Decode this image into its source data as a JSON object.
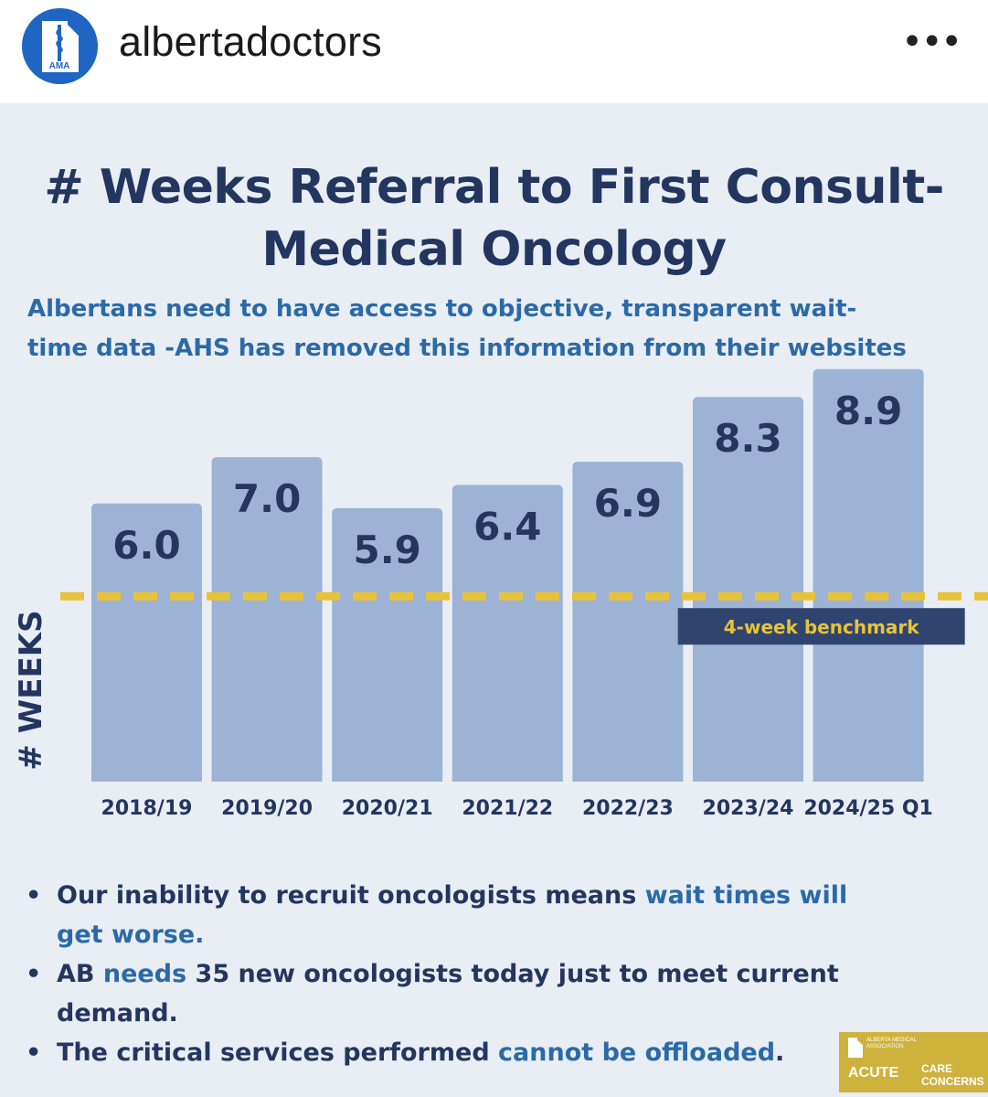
{
  "account": {
    "username": "albertadoctors",
    "avatar_text": "AMA"
  },
  "card": {
    "title_line1": "# Weeks Referral to First Consult-",
    "title_line2": "Medical Oncology",
    "subtitle_line1": "Albertans need to have access to objective, transparent wait-",
    "subtitle_line2": "time data -AHS has removed this information from their websites"
  },
  "chart_data": {
    "type": "bar",
    "title": "# Weeks Referral to First Consult- Medical Oncology",
    "ylabel": "# WEEKS",
    "xlabel": "",
    "categories": [
      "2018/19",
      "2019/20",
      "2020/21",
      "2021/22",
      "2022/23",
      "2023/24",
      "2024/25 Q1"
    ],
    "values": [
      6.0,
      7.0,
      5.9,
      6.4,
      6.9,
      8.3,
      8.9
    ],
    "value_labels": [
      "6.0",
      "7.0",
      "5.9",
      "6.4",
      "6.9",
      "8.3",
      "8.9"
    ],
    "ylim": [
      0,
      10
    ],
    "benchmark": {
      "value": 4,
      "label": "4-week benchmark"
    },
    "colors": {
      "bar": "#9db3d5",
      "value_text": "#22365f",
      "benchmark": "#e8c33a",
      "benchmark_box": "#2f4570",
      "benchmark_text": "#e8c33a",
      "axis_text": "#22365f"
    },
    "grid": false,
    "legend": "none"
  },
  "bullets": [
    {
      "parts": [
        {
          "text": "Our inability to recruit oncologists means ",
          "hl": false
        },
        {
          "text": "wait times will get worse.",
          "hl": true
        }
      ]
    },
    {
      "parts": [
        {
          "text": "AB ",
          "hl": false
        },
        {
          "text": "needs",
          "hl": true
        },
        {
          "text": " 35 new oncologists today just to meet current demand.",
          "hl": false
        }
      ]
    },
    {
      "parts": [
        {
          "text": "The critical services performed ",
          "hl": false
        },
        {
          "text": "cannot be offloaded",
          "hl": true
        },
        {
          "text": ".",
          "hl": false
        }
      ]
    }
  ],
  "badge": {
    "assoc": "ALBERTA MEDICAL ASSOCIATION",
    "acute": "ACUTE",
    "care": "CARE",
    "concerns": "CONCERNS"
  },
  "icons": {
    "more": "more-options-icon",
    "avatar": "ama-logo-icon"
  }
}
